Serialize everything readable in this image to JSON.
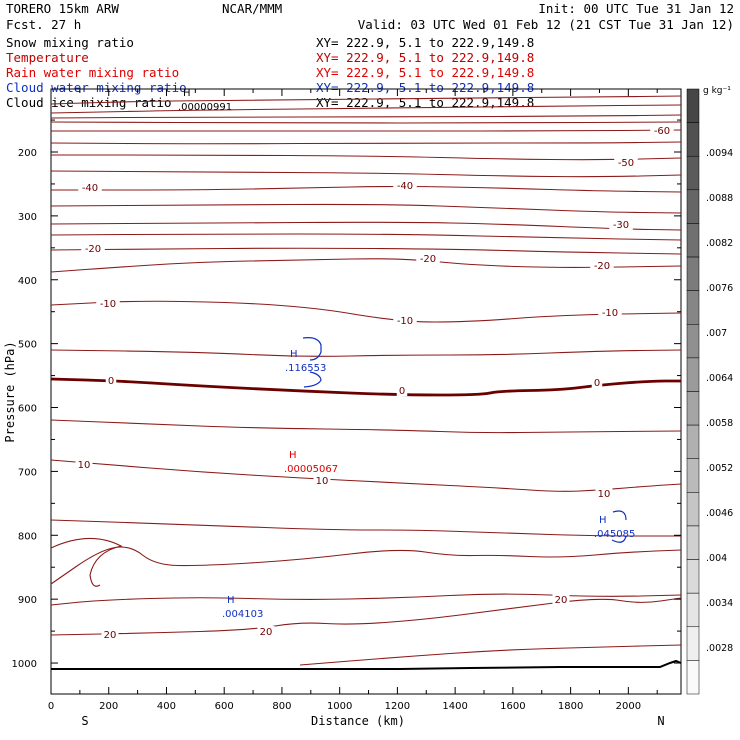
{
  "header": {
    "model": "TORERO  15km ARW",
    "fcst": "Fcst.    27 h",
    "center": "NCAR/MMM",
    "init": "Init: 00 UTC Tue 31 Jan 12",
    "valid": "Valid: 03 UTC Wed 01 Feb 12 (21 CST Tue 31 Jan 12)"
  },
  "fields": [
    {
      "name": "Snow mixing ratio",
      "xy": "XY= 222.9,  5.1 to 222.9,149.8",
      "color": "#000000"
    },
    {
      "name": "Temperature",
      "xy": "XY= 222.9,  5.1 to 222.9,149.8",
      "color": "#c00000"
    },
    {
      "name": "Rain water mixing ratio",
      "xy": "XY= 222.9,  5.1 to 222.9,149.8",
      "color": "#e00000"
    },
    {
      "name": "Cloud water mixing ratio",
      "xy": "XY= 222.9,  5.1 to 222.9,149.8",
      "color": "#1030c0"
    },
    {
      "name": "Cloud ice mixing ratio",
      "xy": "XY= 222.9,  5.1 to 222.9,149.8",
      "color": "#000000"
    }
  ],
  "chart_data": {
    "type": "contour",
    "xlabel": "Distance (km)",
    "ylabel": "Pressure (hPa)",
    "xlim": [
      0,
      2180
    ],
    "ylim": [
      1050,
      100
    ],
    "x_ticks": [
      "0",
      "200",
      "400",
      "600",
      "800",
      "1000",
      "1200",
      "1400",
      "1600",
      "1800",
      "2000"
    ],
    "x_tick_values": [
      0,
      200,
      400,
      600,
      800,
      1000,
      1200,
      1400,
      1600,
      1800,
      2000
    ],
    "y_ticks": [
      "200",
      "300",
      "400",
      "500",
      "600",
      "700",
      "800",
      "900",
      "1000"
    ],
    "y_tick_values": [
      200,
      300,
      400,
      500,
      600,
      700,
      800,
      900,
      1000
    ],
    "x_end_labels": {
      "left": "S",
      "right": "N"
    },
    "colorbar": {
      "unit": "g kg⁻¹",
      "labels": [
        ".0094",
        ".0088",
        ".0082",
        ".0076",
        ".007",
        ".0064",
        ".0058",
        ".0052",
        ".0046",
        ".004",
        ".0034",
        ".0028"
      ]
    },
    "temperature_contours": [
      {
        "level": -60,
        "label": "-60"
      },
      {
        "level": -50,
        "label": "-50"
      },
      {
        "level": -40,
        "label": "-40"
      },
      {
        "level": -30,
        "label": "-30"
      },
      {
        "level": -20,
        "label": "-20"
      },
      {
        "level": -10,
        "label": "-10"
      },
      {
        "level": 0,
        "label": "0"
      },
      {
        "level": 10,
        "label": "10"
      },
      {
        "level": 20,
        "label": "20"
      }
    ],
    "maxima": [
      {
        "field": "Cloud ice mixing ratio",
        "mark": "H",
        "value": ".00000991",
        "x_km": 460,
        "p_hpa": 112,
        "color": "#000000"
      },
      {
        "field": "Cloud water mixing ratio",
        "mark": "H",
        "value": ".116553",
        "x_km": 880,
        "p_hpa": 528,
        "color": "#1030c0"
      },
      {
        "field": "Rain water mixing ratio",
        "mark": "H",
        "value": ".00005067",
        "x_km": 850,
        "p_hpa": 690,
        "color": "#e00000"
      },
      {
        "field": "Cloud water mixing ratio",
        "mark": "H",
        "value": ".045085",
        "x_km": 1940,
        "p_hpa": 790,
        "color": "#1030c0"
      },
      {
        "field": "Cloud water mixing ratio",
        "mark": "H",
        "value": ".004103",
        "x_km": 630,
        "p_hpa": 915,
        "color": "#1030c0"
      }
    ]
  }
}
